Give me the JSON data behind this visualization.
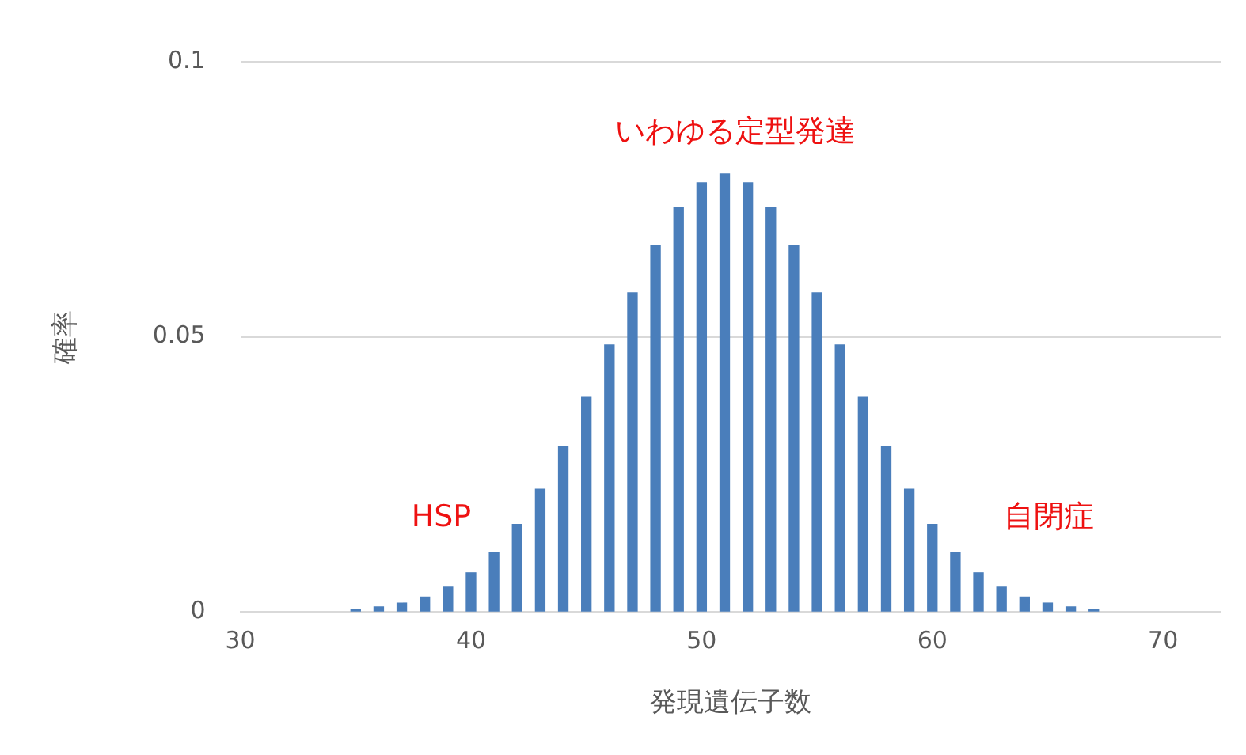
{
  "chart_data": {
    "type": "bar",
    "xlabel": "発現遺伝子数",
    "ylabel": "確率",
    "x": [
      35,
      36,
      37,
      38,
      39,
      40,
      41,
      42,
      43,
      44,
      45,
      46,
      47,
      48,
      49,
      50,
      51,
      52,
      53,
      54,
      55,
      56,
      57,
      58,
      59,
      60,
      61,
      62,
      63,
      64,
      65,
      66,
      67
    ],
    "values": [
      0.0005,
      0.0009,
      0.0016,
      0.0027,
      0.0045,
      0.0071,
      0.0108,
      0.0159,
      0.0223,
      0.0301,
      0.039,
      0.0485,
      0.058,
      0.0666,
      0.0735,
      0.078,
      0.0796,
      0.078,
      0.0735,
      0.0666,
      0.058,
      0.0485,
      0.039,
      0.0301,
      0.0223,
      0.0159,
      0.0108,
      0.0071,
      0.0045,
      0.0027,
      0.0016,
      0.0009,
      0.0005
    ],
    "color": "#4a7ebb",
    "xlim": [
      30,
      72.5
    ],
    "xticks": [
      30,
      40,
      50,
      60,
      70
    ],
    "ylim": [
      0,
      0.1
    ],
    "yticks": [
      0,
      0.05,
      0.1
    ],
    "grid": "y",
    "annotations": [
      "いわゆる定型発達",
      "HSP",
      "自閉症"
    ]
  }
}
